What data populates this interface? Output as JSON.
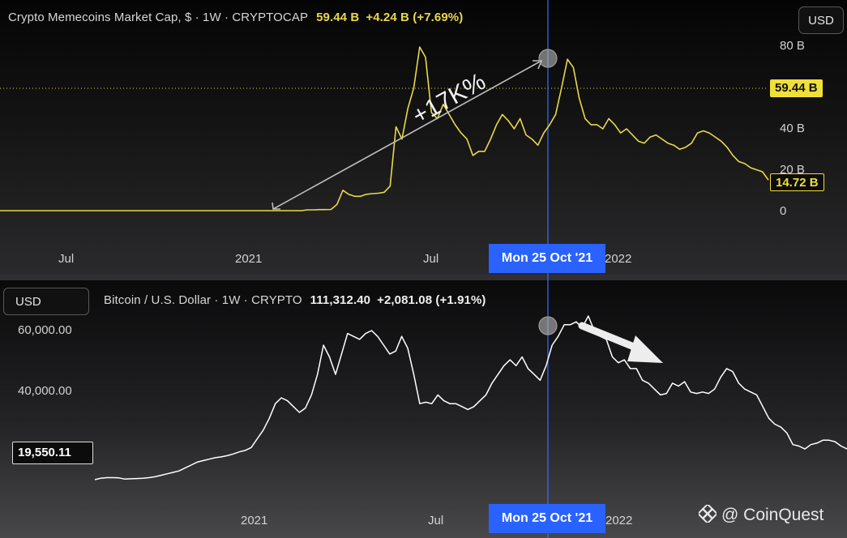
{
  "top_panel": {
    "title": "Crypto Memecoins Market Cap, $ · 1W · CRYPTOCAP",
    "value": "59.44 B",
    "change": "+4.24 B (+7.69%)",
    "currency": "USD",
    "price_tag": "59.44 B",
    "last_tag": "14.72 B",
    "y_ticks": [
      "80 B",
      "40 B",
      "20 B",
      "0"
    ],
    "x_ticks": [
      "Jul",
      "2021",
      "Jul",
      "2022"
    ],
    "annotation": "+17K%",
    "colors": {
      "line": "#e8d84a",
      "accent": "#2962ff"
    }
  },
  "bottom_panel": {
    "title": "Bitcoin / U.S. Dollar · 1W · CRYPTO",
    "value": "111,312.40",
    "change": "+2,081.08 (+1.91%)",
    "currency": "USD",
    "y_ticks": [
      "60,000.00",
      "40,000.00"
    ],
    "price_tag": "19,550.11",
    "x_ticks": [
      "2021",
      "Jul",
      "2022"
    ],
    "colors": {
      "line": "#ffffff"
    }
  },
  "crosshair_date": "Mon 25 Oct '21",
  "watermark": "@ CoinQuest",
  "chart_data": [
    {
      "type": "line",
      "title": "Crypto Memecoins Market Cap, $ · 1W · CRYPTOCAP",
      "ylabel": "",
      "ylim": [
        0,
        80
      ],
      "unit": "B USD",
      "series": [
        {
          "values": [
            0,
            0,
            0,
            0,
            0,
            0,
            0,
            0,
            0,
            0,
            0,
            0,
            0,
            0,
            0,
            0,
            0,
            0,
            0,
            0,
            0,
            0,
            0,
            0,
            0,
            0,
            0,
            0,
            0,
            0,
            0,
            0,
            0,
            0,
            0,
            0,
            0,
            0,
            0,
            0,
            0,
            0,
            0,
            0,
            0,
            0,
            0,
            0,
            0,
            0,
            0,
            0,
            0.4,
            0.4,
            0.5,
            0.5,
            0.6,
            3,
            10,
            8,
            7,
            7,
            8,
            8.3,
            8.5,
            9,
            12,
            41,
            35,
            50,
            60,
            80,
            75,
            48,
            45,
            52,
            47,
            42,
            38,
            35,
            27,
            29,
            29,
            35,
            42,
            47,
            44,
            40,
            45,
            37,
            35,
            32,
            38,
            42,
            47,
            60,
            74,
            70,
            55,
            45,
            42,
            42,
            40,
            45,
            42,
            38,
            40,
            37,
            34,
            33,
            36,
            37,
            35,
            33,
            32,
            30,
            31,
            33,
            38,
            39,
            38,
            36,
            34,
            31,
            27,
            24,
            23,
            21,
            20,
            19,
            15
          ]
        }
      ]
    },
    {
      "type": "line",
      "title": "Bitcoin / U.S. Dollar · 1W · CRYPTO",
      "ylabel": "",
      "ylim": [
        0,
        70000
      ],
      "series": [
        {
          "values": [
            9000,
            9500,
            9700,
            9700,
            9600,
            9200,
            9300,
            9400,
            9500,
            9700,
            10000,
            10500,
            11000,
            11500,
            12000,
            13000,
            14000,
            15000,
            15500,
            16000,
            16500,
            16800,
            17200,
            17800,
            18500,
            19000,
            20000,
            23000,
            26000,
            30000,
            35000,
            37000,
            36000,
            34000,
            32000,
            33500,
            38000,
            45000,
            55000,
            51000,
            45000,
            52000,
            59000,
            58000,
            57000,
            59000,
            60000,
            58000,
            55000,
            52000,
            53000,
            58000,
            54000,
            45000,
            35000,
            35500,
            35000,
            38000,
            36000,
            35000,
            35000,
            34000,
            33000,
            34000,
            36000,
            38000,
            42000,
            45000,
            48000,
            50000,
            48000,
            51000,
            47000,
            45000,
            43000,
            48000,
            55000,
            58000,
            62000,
            62000,
            63000,
            61000,
            65000,
            60000,
            58000,
            57000,
            51000,
            49000,
            50000,
            47000,
            47000,
            43000,
            42000,
            40000,
            38000,
            38500,
            42000,
            41000,
            42500,
            39000,
            38500,
            39000,
            38500,
            40000,
            44000,
            47000,
            46000,
            42000,
            40000,
            39000,
            38000,
            34000,
            30000,
            28000,
            27000,
            25000,
            21000,
            20500,
            19500,
            21000,
            21500,
            22500,
            22500,
            22000,
            20500,
            19500
          ]
        }
      ]
    }
  ]
}
